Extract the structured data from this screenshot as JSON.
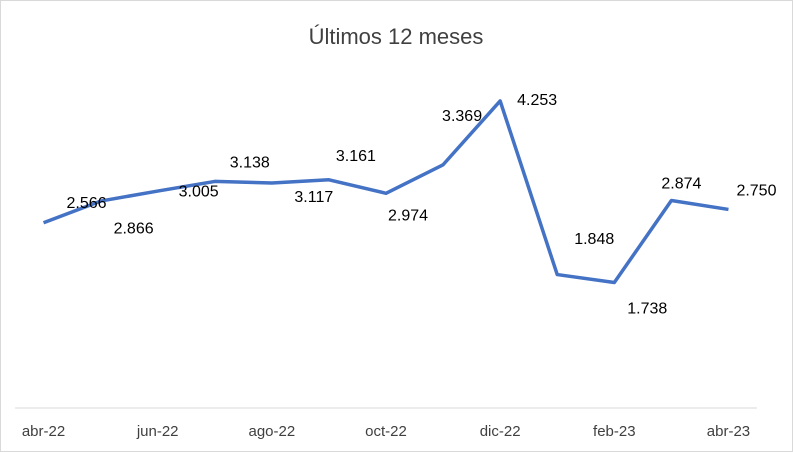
{
  "chart_data": {
    "type": "line",
    "title": "Últimos 12 meses",
    "categories": [
      "abr-22",
      null,
      "jun-22",
      null,
      "ago-22",
      null,
      "oct-22",
      null,
      "dic-22",
      null,
      "feb-23",
      null,
      "abr-23"
    ],
    "series": [
      {
        "name": null,
        "color": "#4472c4",
        "values": [
          2566,
          2866,
          3005,
          3138,
          3117,
          3161,
          2974,
          3369,
          4253,
          1848,
          1738,
          2874,
          2750
        ],
        "value_labels": [
          "2.566",
          "2.866",
          "3.005",
          "3.138",
          "3.117",
          "3.161",
          "2.974",
          "3.369",
          "4.253",
          "1.848",
          "1.738",
          "2.874",
          "2.750"
        ]
      }
    ],
    "ylim": [
      0,
      5000
    ],
    "grid": false
  }
}
